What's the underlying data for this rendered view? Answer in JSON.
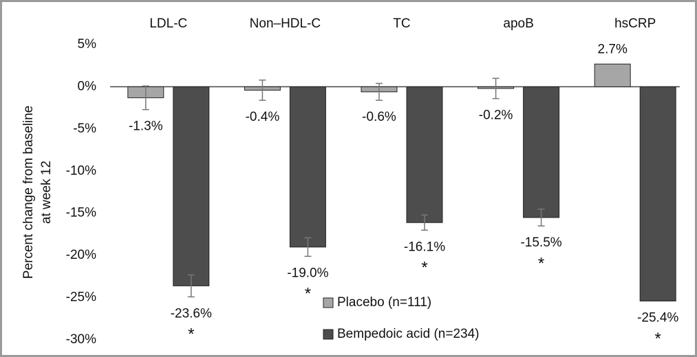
{
  "chart_data": {
    "type": "bar",
    "y_label": [
      "Percent change from baseline",
      "at week 12"
    ],
    "categories": [
      "LDL-C",
      "Non–HDL-C",
      "TC",
      "apoB",
      "hsCRP"
    ],
    "series": [
      {
        "name": "Placebo (n=111)",
        "color": "#a6a6a6",
        "values": [
          -1.3,
          -0.4,
          -0.6,
          -0.2,
          2.7
        ],
        "value_labels": [
          "-1.3%",
          "-0.4%",
          "-0.6%",
          "-0.2%",
          "2.7%"
        ],
        "errors": [
          1.4,
          1.2,
          1.0,
          1.2,
          null
        ]
      },
      {
        "name": "Bempedoic acid (n=234)",
        "color": "#4d4d4d",
        "values": [
          -23.6,
          -19.0,
          -16.1,
          -15.5,
          -25.4
        ],
        "value_labels": [
          "-23.6%",
          "-19.0%",
          "-16.1%",
          "-15.5%",
          "-25.4%"
        ],
        "errors": [
          1.3,
          1.1,
          0.9,
          1.0,
          null
        ],
        "markers": [
          "*",
          "*",
          "*",
          "*",
          "*"
        ]
      }
    ],
    "ylim": [
      -30,
      5
    ],
    "yticks": [
      {
        "value": 5,
        "label": "5%"
      },
      {
        "value": 0,
        "label": "0%"
      },
      {
        "value": -5,
        "label": "-5%"
      },
      {
        "value": -10,
        "label": "-10%"
      },
      {
        "value": -15,
        "label": "-15%"
      },
      {
        "value": -20,
        "label": "-20%"
      },
      {
        "value": -25,
        "label": "-25%"
      },
      {
        "value": -30,
        "label": "-30%"
      }
    ],
    "grid": false,
    "legend": "bottom"
  }
}
